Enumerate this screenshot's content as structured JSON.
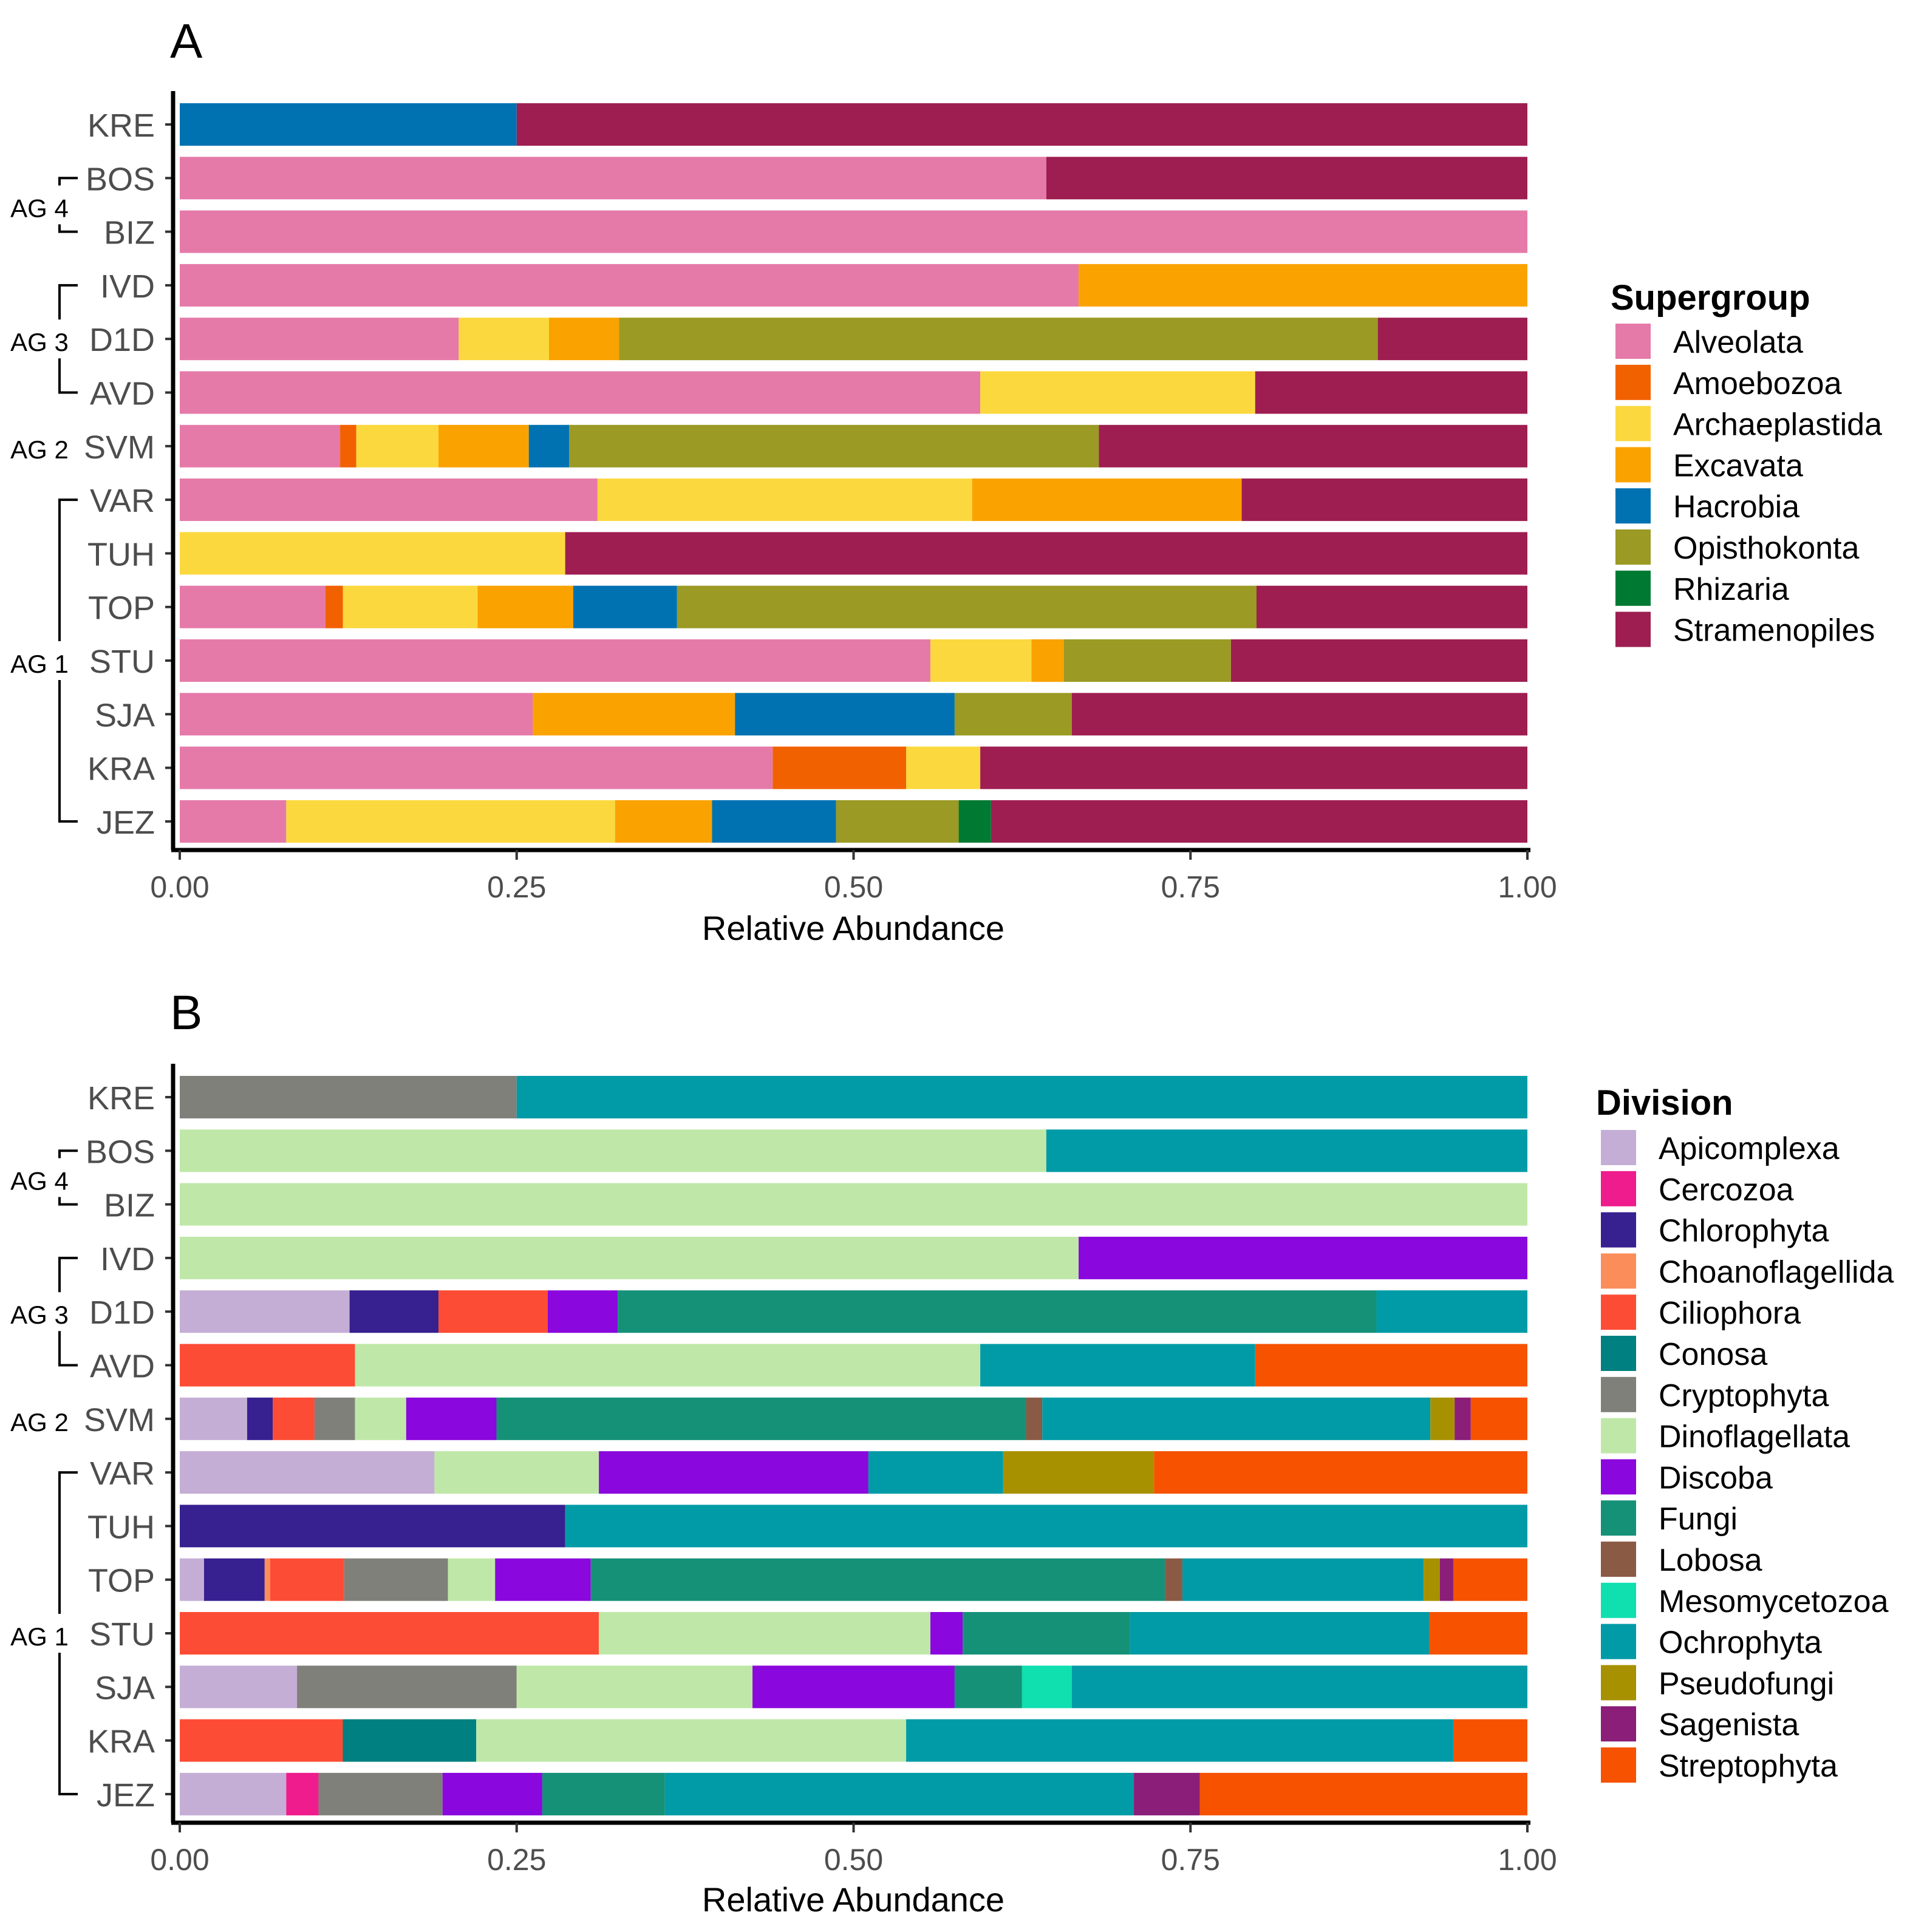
{
  "chart_data": [
    {
      "panel": "A",
      "type": "bar",
      "orientation": "horizontal",
      "stacked": true,
      "title": "",
      "xlabel": "Relative Abundance",
      "ylabel": "",
      "xlim": [
        0,
        1
      ],
      "xticks": [
        "0.00",
        "0.25",
        "0.50",
        "0.75",
        "1.00"
      ],
      "tick_values": [
        0,
        0.25,
        0.5,
        0.75,
        1
      ],
      "categories": [
        "KRE",
        "BOS",
        "BIZ",
        "IVD",
        "D1D",
        "AVD",
        "SVM",
        "VAR",
        "TUH",
        "TOP",
        "STU",
        "SJA",
        "KRA",
        "JEZ"
      ],
      "groups": [
        {
          "label": "AG 4",
          "first": "BOS",
          "last": "BIZ"
        },
        {
          "label": "AG 3",
          "first": "IVD",
          "last": "AVD"
        },
        {
          "label": "AG 2",
          "first": "SVM",
          "last": "SVM"
        },
        {
          "label": "AG 1",
          "first": "VAR",
          "last": "JEZ"
        }
      ],
      "legend_title": "Supergroup",
      "legend_position": "right",
      "series": [
        {
          "name": "Alveolata",
          "color": "#E57AA9",
          "values": [
            0,
            0.643,
            1.0,
            0.667,
            0.207,
            0.594,
            0.119,
            0.31,
            0,
            0.108,
            0.557,
            0.262,
            0.44,
            0.079
          ]
        },
        {
          "name": "Amoebozoa",
          "color": "#F26100",
          "values": [
            0,
            0,
            0,
            0,
            0,
            0,
            0.012,
            0,
            0,
            0.013,
            0,
            0,
            0.099,
            0
          ]
        },
        {
          "name": "Archaeplastida",
          "color": "#FCD83F",
          "values": [
            0,
            0,
            0,
            0,
            0.067,
            0.204,
            0.061,
            0.278,
            0.286,
            0.1,
            0.075,
            0,
            0.055,
            0.244
          ]
        },
        {
          "name": "Excavata",
          "color": "#FAA200",
          "values": [
            0,
            0,
            0,
            0.333,
            0.052,
            0,
            0.067,
            0.2,
            0,
            0.071,
            0.024,
            0.15,
            0,
            0.072
          ]
        },
        {
          "name": "Hacrobia",
          "color": "#0072B2",
          "values": [
            0.25,
            0,
            0,
            0,
            0,
            0,
            0.03,
            0,
            0,
            0.077,
            0,
            0.163,
            0,
            0.092
          ]
        },
        {
          "name": "Opisthokonta",
          "color": "#9A9A24",
          "values": [
            0,
            0,
            0,
            0,
            0.563,
            0,
            0.393,
            0,
            0,
            0.43,
            0.124,
            0.087,
            0,
            0.091
          ]
        },
        {
          "name": "Rhizaria",
          "color": "#007A33",
          "values": [
            0,
            0,
            0,
            0,
            0,
            0,
            0,
            0,
            0,
            0,
            0,
            0,
            0,
            0.024
          ]
        },
        {
          "name": "Stramenopiles",
          "color": "#9E1E51",
          "values": [
            0.75,
            0.357,
            0,
            0,
            0.111,
            0.202,
            0.318,
            0.212,
            0.714,
            0.201,
            0.22,
            0.338,
            0.406,
            0.398
          ]
        }
      ]
    },
    {
      "panel": "B",
      "type": "bar",
      "orientation": "horizontal",
      "stacked": true,
      "title": "",
      "xlabel": "Relative Abundance",
      "ylabel": "",
      "xlim": [
        0,
        1
      ],
      "xticks": [
        "0.00",
        "0.25",
        "0.50",
        "0.75",
        "1.00"
      ],
      "tick_values": [
        0,
        0.25,
        0.5,
        0.75,
        1
      ],
      "categories": [
        "KRE",
        "BOS",
        "BIZ",
        "IVD",
        "D1D",
        "AVD",
        "SVM",
        "VAR",
        "TUH",
        "TOP",
        "STU",
        "SJA",
        "KRA",
        "JEZ"
      ],
      "groups": [
        {
          "label": "AG 4",
          "first": "BOS",
          "last": "BIZ"
        },
        {
          "label": "AG 3",
          "first": "IVD",
          "last": "AVD"
        },
        {
          "label": "AG 2",
          "first": "SVM",
          "last": "SVM"
        },
        {
          "label": "AG 1",
          "first": "VAR",
          "last": "JEZ"
        }
      ],
      "legend_title": "Division",
      "legend_position": "right",
      "series": [
        {
          "name": "Apicomplexa",
          "color": "#C5AED6",
          "values": [
            0,
            0,
            0,
            0,
            0.126,
            0,
            0.05,
            0.189,
            0,
            0.018,
            0,
            0.087,
            0,
            0.079
          ]
        },
        {
          "name": "Cercozoa",
          "color": "#EE1C8C",
          "values": [
            0,
            0,
            0,
            0,
            0,
            0,
            0,
            0,
            0,
            0,
            0,
            0,
            0,
            0.024
          ]
        },
        {
          "name": "Chlorophyta",
          "color": "#372090",
          "values": [
            0,
            0,
            0,
            0,
            0.066,
            0,
            0.019,
            0,
            0.286,
            0.045,
            0,
            0,
            0,
            0
          ]
        },
        {
          "name": "Choanoflagellida",
          "color": "#FB8D5A",
          "values": [
            0,
            0,
            0,
            0,
            0,
            0,
            0,
            0,
            0,
            0.004,
            0,
            0,
            0,
            0
          ]
        },
        {
          "name": "Ciliophora",
          "color": "#FD4C35",
          "values": [
            0,
            0,
            0,
            0,
            0.081,
            0.13,
            0.031,
            0,
            0,
            0.055,
            0.311,
            0,
            0.121,
            0
          ]
        },
        {
          "name": "Conosa",
          "color": "#008080",
          "values": [
            0,
            0,
            0,
            0,
            0,
            0,
            0,
            0,
            0,
            0,
            0,
            0,
            0.099,
            0
          ]
        },
        {
          "name": "Cryptophyta",
          "color": "#80807A",
          "values": [
            0.25,
            0,
            0,
            0,
            0,
            0,
            0.03,
            0,
            0,
            0.077,
            0,
            0.163,
            0,
            0.092
          ]
        },
        {
          "name": "Dinoflagellata",
          "color": "#BFE8A8",
          "values": [
            0,
            0.643,
            1.0,
            0.667,
            0,
            0.464,
            0.038,
            0.122,
            0,
            0.035,
            0.246,
            0.175,
            0.319,
            0
          ]
        },
        {
          "name": "Discoba",
          "color": "#8A07DD",
          "values": [
            0,
            0,
            0,
            0.333,
            0.052,
            0,
            0.067,
            0.2,
            0,
            0.071,
            0.024,
            0.15,
            0,
            0.074
          ]
        },
        {
          "name": "Fungi",
          "color": "#159178",
          "values": [
            0,
            0,
            0,
            0,
            0.563,
            0,
            0.393,
            0,
            0,
            0.426,
            0.124,
            0.05,
            0,
            0.091
          ]
        },
        {
          "name": "Lobosa",
          "color": "#8B5A45",
          "values": [
            0,
            0,
            0,
            0,
            0,
            0,
            0.012,
            0,
            0,
            0.013,
            0,
            0,
            0,
            0
          ]
        },
        {
          "name": "Mesomycetozoa",
          "color": "#10DFB0",
          "values": [
            0,
            0,
            0,
            0,
            0,
            0,
            0,
            0,
            0,
            0,
            0,
            0.037,
            0,
            0
          ]
        },
        {
          "name": "Ochrophyta",
          "color": "#009BA6",
          "values": [
            0.75,
            0.357,
            0,
            0,
            0.112,
            0.204,
            0.288,
            0.1,
            0.714,
            0.179,
            0.222,
            0.338,
            0.406,
            0.348
          ]
        },
        {
          "name": "Pseudofungi",
          "color": "#A89100",
          "values": [
            0,
            0,
            0,
            0,
            0,
            0,
            0.018,
            0.112,
            0,
            0.012,
            0,
            0,
            0,
            0
          ]
        },
        {
          "name": "Sagenista",
          "color": "#8A1E79",
          "values": [
            0,
            0,
            0,
            0,
            0,
            0,
            0.012,
            0,
            0,
            0.01,
            0,
            0,
            0,
            0.049
          ]
        },
        {
          "name": "Streptophyta",
          "color": "#F65200",
          "values": [
            0,
            0,
            0,
            0,
            0,
            0.202,
            0.042,
            0.277,
            0,
            0.055,
            0.073,
            0,
            0.055,
            0.243
          ]
        }
      ]
    }
  ]
}
